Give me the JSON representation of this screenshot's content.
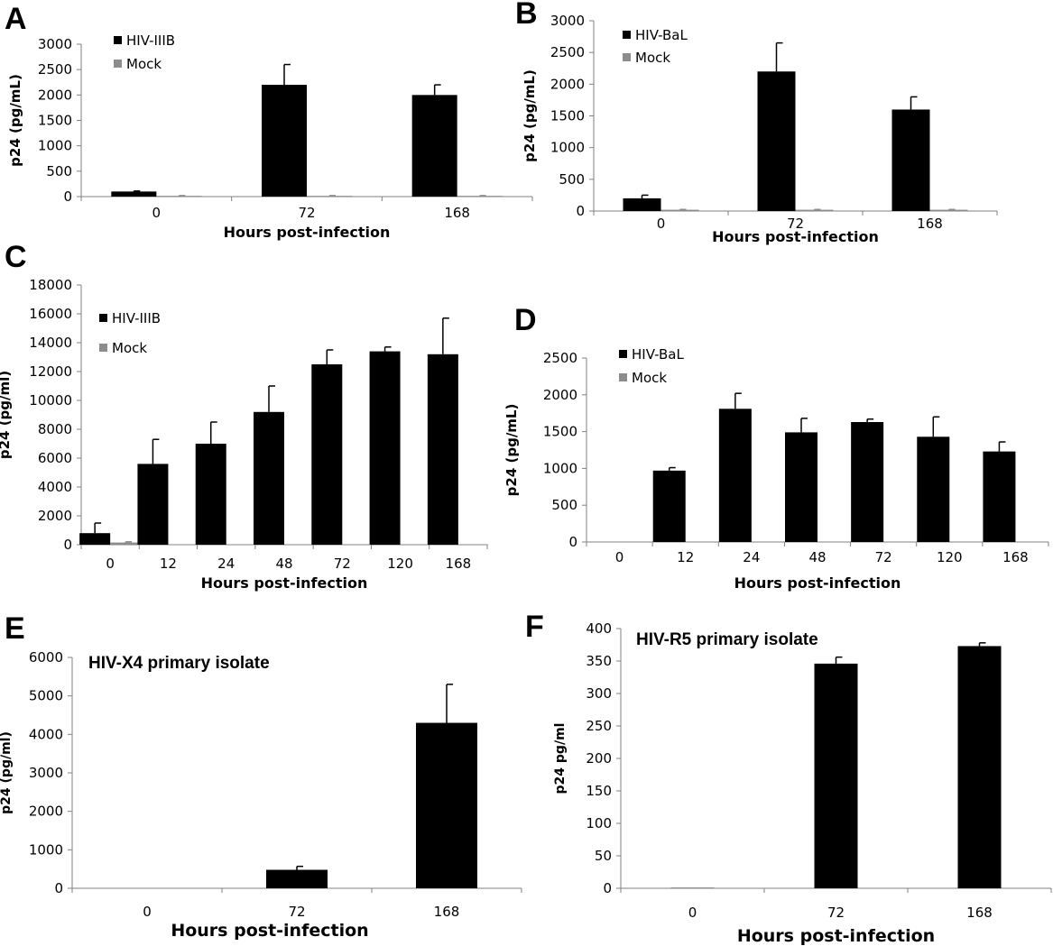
{
  "chart_data": [
    {
      "panel": "A",
      "type": "bar",
      "categories": [
        "0",
        "72",
        "168"
      ],
      "series": [
        {
          "name": "HIV-IIIB",
          "color": "#000000",
          "values": [
            100,
            2200,
            2000
          ],
          "errors": [
            10,
            400,
            200
          ]
        },
        {
          "name": "Mock",
          "color": "#8c8c8c",
          "values": [
            15,
            15,
            15
          ],
          "errors": [
            5,
            5,
            5
          ]
        }
      ],
      "xlabel": "Hours post-infection",
      "ylabel": "p24 (pg/mL)",
      "ylim": [
        0,
        3000
      ],
      "yticks": [
        0,
        500,
        1000,
        1500,
        2000,
        2500,
        3000
      ],
      "legend_position": "top-left",
      "grid": false
    },
    {
      "panel": "B",
      "type": "bar",
      "categories": [
        "0",
        "72",
        "168"
      ],
      "series": [
        {
          "name": "HIV-BaL",
          "color": "#000000",
          "values": [
            200,
            2200,
            1600
          ],
          "errors": [
            50,
            450,
            200
          ]
        },
        {
          "name": "Mock",
          "color": "#8c8c8c",
          "values": [
            20,
            20,
            20
          ],
          "errors": [
            5,
            5,
            5
          ]
        }
      ],
      "xlabel": "Hours post-infection",
      "ylabel": "p24 (pg/mL)",
      "ylim": [
        0,
        3000
      ],
      "yticks": [
        0,
        500,
        1000,
        1500,
        2000,
        2500,
        3000
      ],
      "legend_position": "top-left",
      "grid": false
    },
    {
      "panel": "C",
      "type": "bar",
      "categories": [
        "0",
        "12",
        "24",
        "48",
        "72",
        "120",
        "168"
      ],
      "series": [
        {
          "name": "HIV-IIIB",
          "color": "#000000",
          "values": [
            800,
            5600,
            7000,
            9200,
            12500,
            13400,
            13200
          ],
          "errors": [
            700,
            1700,
            1500,
            1800,
            1000,
            300,
            2500
          ]
        },
        {
          "name": "Mock",
          "color": "#8c8c8c",
          "values": [
            150,
            20,
            20,
            20,
            20,
            20,
            20
          ],
          "errors": [
            50,
            0,
            0,
            0,
            0,
            0,
            0
          ]
        }
      ],
      "xlabel": "Hours post-infection",
      "ylabel": "p24 (pg/ml)",
      "ylim": [
        0,
        18000
      ],
      "yticks": [
        0,
        2000,
        4000,
        6000,
        8000,
        10000,
        12000,
        14000,
        16000,
        18000
      ],
      "legend_position": "top-left",
      "grid": false
    },
    {
      "panel": "D",
      "type": "bar",
      "categories": [
        "0",
        "12",
        "24",
        "48",
        "72",
        "120",
        "168"
      ],
      "series": [
        {
          "name": "HIV-BaL",
          "color": "#000000",
          "values": [
            0,
            970,
            1810,
            1490,
            1630,
            1430,
            1230
          ],
          "errors": [
            0,
            40,
            210,
            190,
            40,
            270,
            130
          ]
        },
        {
          "name": "Mock",
          "color": "#8c8c8c",
          "values": [
            0,
            0,
            0,
            0,
            0,
            0,
            0
          ],
          "errors": [
            0,
            0,
            0,
            0,
            0,
            0,
            0
          ]
        }
      ],
      "xlabel": "Hours post-infection",
      "ylabel": "p24 (pg/mL)",
      "ylim": [
        0,
        2500
      ],
      "yticks": [
        0,
        500,
        1000,
        1500,
        2000,
        2500
      ],
      "legend_position": "top-left",
      "grid": false
    },
    {
      "panel": "E",
      "type": "bar",
      "title": "HIV-X4 primary isolate",
      "categories": [
        "0",
        "72",
        "168"
      ],
      "series": [
        {
          "color": "#000000",
          "values": [
            0,
            480,
            4300
          ],
          "errors": [
            0,
            90,
            1000
          ]
        }
      ],
      "xlabel": "Hours post-infection",
      "ylabel": "p24 (pg/ml)",
      "ylim": [
        0,
        6000
      ],
      "yticks": [
        0,
        1000,
        2000,
        3000,
        4000,
        5000,
        6000
      ],
      "grid": false
    },
    {
      "panel": "F",
      "type": "bar",
      "title": "HIV-R5 primary isolate",
      "categories": [
        "0",
        "72",
        "168"
      ],
      "series": [
        {
          "color": "#000000",
          "values": [
            0.5,
            346,
            373
          ],
          "errors": [
            0,
            10,
            5
          ]
        }
      ],
      "xlabel": "Hours post-infection",
      "ylabel": "p24 pg/ml",
      "ylim": [
        0,
        400
      ],
      "yticks": [
        0,
        50,
        100,
        150,
        200,
        250,
        300,
        350,
        400
      ],
      "grid": false
    }
  ]
}
